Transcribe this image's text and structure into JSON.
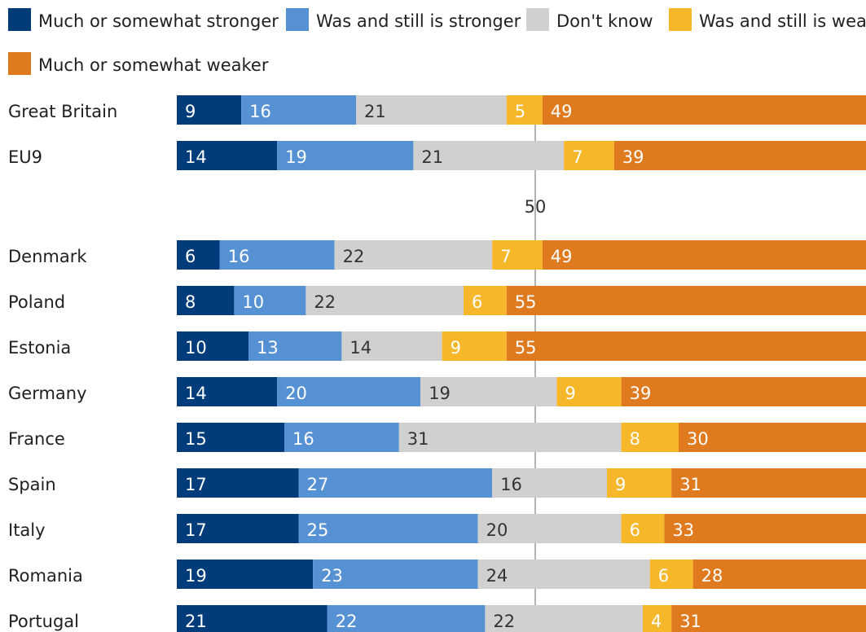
{
  "chart_data": {
    "type": "bar",
    "orientation": "horizontal",
    "stacked": true,
    "xlim": [
      0,
      100
    ],
    "reference_line": {
      "value": 50,
      "label": "50"
    },
    "legend_position": "top",
    "series": [
      {
        "name": "Much or somewhat stronger",
        "color": "#003b7a"
      },
      {
        "name": "Was and still is stronger",
        "color": "#5591d3"
      },
      {
        "name": "Don't know",
        "color": "#d0d0d0"
      },
      {
        "name": "Was and still is weaker",
        "color": "#f6b72b"
      },
      {
        "name": "Much or somewhat weaker",
        "color": "#e07a1f"
      }
    ],
    "groups": [
      {
        "rows": [
          {
            "label": "Great Britain",
            "values": [
              9,
              16,
              21,
              5,
              49
            ]
          },
          {
            "label": "EU9",
            "values": [
              14,
              19,
              21,
              7,
              39
            ]
          }
        ]
      },
      {
        "rows": [
          {
            "label": "Denmark",
            "values": [
              6,
              16,
              22,
              7,
              49
            ]
          },
          {
            "label": "Poland",
            "values": [
              8,
              10,
              22,
              6,
              55
            ]
          },
          {
            "label": "Estonia",
            "values": [
              10,
              13,
              14,
              9,
              55
            ]
          },
          {
            "label": "Germany",
            "values": [
              14,
              20,
              19,
              9,
              39
            ]
          },
          {
            "label": "France",
            "values": [
              15,
              16,
              31,
              8,
              30
            ]
          },
          {
            "label": "Spain",
            "values": [
              17,
              27,
              16,
              9,
              31
            ]
          },
          {
            "label": "Italy",
            "values": [
              17,
              25,
              20,
              6,
              33
            ]
          },
          {
            "label": "Romania",
            "values": [
              19,
              23,
              24,
              6,
              28
            ]
          },
          {
            "label": "Portugal",
            "values": [
              21,
              22,
              22,
              4,
              31
            ]
          }
        ]
      }
    ]
  }
}
